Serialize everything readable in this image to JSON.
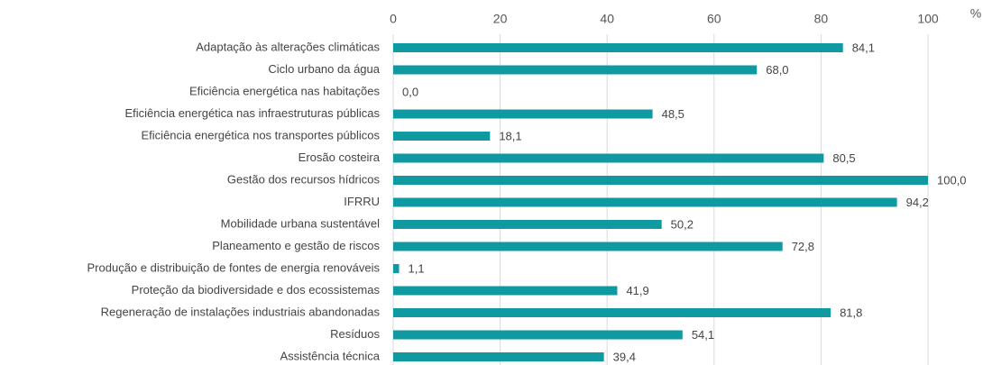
{
  "chart_data": {
    "type": "bar",
    "orientation": "horizontal",
    "xlabel": "%",
    "categories": [
      "Adaptação às alterações climáticas",
      "Ciclo urbano da água",
      "Eficiência energética nas habitações",
      "Eficiência energética nas infraestruturas públicas",
      "Eficiência energética nos transportes públicos",
      "Erosão costeira",
      "Gestão dos recursos hídricos",
      "IFRRU",
      "Mobilidade urbana sustentável",
      "Planeamento e gestão de riscos",
      "Produção e distribuição de fontes de energia renováveis",
      "Proteção da biodiversidade e dos ecossistemas",
      "Regeneração de instalações industriais abandonadas",
      "Resíduos",
      "Assistência técnica"
    ],
    "values": [
      84.1,
      68.0,
      0.0,
      48.5,
      18.1,
      80.5,
      100.0,
      94.2,
      50.2,
      72.8,
      1.1,
      41.9,
      81.8,
      54.1,
      39.4
    ],
    "value_labels": [
      "84,1",
      "68,0",
      "0,0",
      "48,5",
      "18,1",
      "80,5",
      "100,0",
      "94,2",
      "50,2",
      "72,8",
      "1,1",
      "41,9",
      "81,8",
      "54,1",
      "39,4"
    ],
    "color": "#0e9aa0",
    "xlim": [
      0,
      100
    ],
    "xticks": [
      0,
      20,
      40,
      60,
      80,
      100
    ],
    "grid": true
  }
}
